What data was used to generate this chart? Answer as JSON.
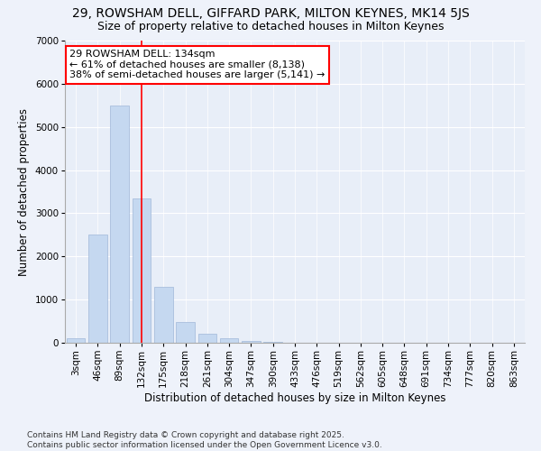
{
  "title1": "29, ROWSHAM DELL, GIFFARD PARK, MILTON KEYNES, MK14 5JS",
  "title2": "Size of property relative to detached houses in Milton Keynes",
  "xlabel": "Distribution of detached houses by size in Milton Keynes",
  "ylabel": "Number of detached properties",
  "categories": [
    "3sqm",
    "46sqm",
    "89sqm",
    "132sqm",
    "175sqm",
    "218sqm",
    "261sqm",
    "304sqm",
    "347sqm",
    "390sqm",
    "433sqm",
    "476sqm",
    "519sqm",
    "562sqm",
    "605sqm",
    "648sqm",
    "691sqm",
    "734sqm",
    "777sqm",
    "820sqm",
    "863sqm"
  ],
  "values": [
    100,
    2500,
    5500,
    3350,
    1300,
    480,
    210,
    95,
    45,
    20,
    0,
    0,
    0,
    0,
    0,
    0,
    0,
    0,
    0,
    0,
    0
  ],
  "bar_color": "#c5d8f0",
  "bar_edge_color": "#a0b8d8",
  "vline_color": "red",
  "vline_x_index": 3,
  "annotation_line1": "29 ROWSHAM DELL: 134sqm",
  "annotation_line2": "← 61% of detached houses are smaller (8,138)",
  "annotation_line3": "38% of semi-detached houses are larger (5,141) →",
  "ylim": [
    0,
    7000
  ],
  "yticks": [
    0,
    1000,
    2000,
    3000,
    4000,
    5000,
    6000,
    7000
  ],
  "bg_color": "#e8eef8",
  "fig_bg_color": "#eef2fa",
  "footer_line1": "Contains HM Land Registry data © Crown copyright and database right 2025.",
  "footer_line2": "Contains public sector information licensed under the Open Government Licence v3.0.",
  "title1_fontsize": 10,
  "title2_fontsize": 9,
  "xlabel_fontsize": 8.5,
  "ylabel_fontsize": 8.5,
  "tick_fontsize": 7.5,
  "annotation_fontsize": 8,
  "footer_fontsize": 6.5
}
